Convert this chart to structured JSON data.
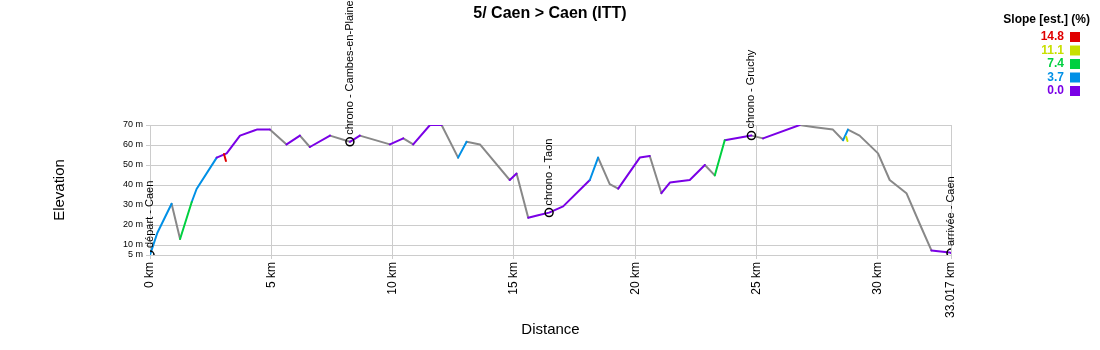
{
  "chart_data": {
    "type": "line",
    "title": "5/ Caen > Caen (ITT)",
    "xlabel": "Distance",
    "ylabel": "Elevation",
    "legend_title": "Slope [est.] (%)",
    "legend": "top right",
    "series": [
      {
        "name": "14.8",
        "color": "#e00000",
        "marker": "none",
        "line_style": "solid",
        "x": [
          3.05,
          3.13
        ],
        "values": [
          55.5,
          52
        ]
      },
      {
        "name": "11.1",
        "color": "#c8e000",
        "marker": "none",
        "line_style": "solid",
        "x": [
          28.7,
          28.75
        ],
        "values": [
          64,
          62
        ]
      },
      {
        "name": "7.4",
        "color": "#00d040",
        "marker": "none",
        "line_style": "solid",
        "x": [
          1.24,
          1.72
        ],
        "values": [
          13,
          31.5
        ]
      },
      {
        "name": "3.7",
        "color": "#0090e6",
        "marker": "none",
        "line_style": "solid",
        "x": [
          0,
          0.3,
          0.89
        ],
        "values": [
          5,
          16,
          30.6
        ]
      },
      {
        "name": "0.0",
        "color": "#7a00e6",
        "marker": "none",
        "line_style": "solid",
        "x": [
          2.75,
          3.16,
          3.71,
          4.4,
          4.94
        ],
        "values": [
          53.7,
          55.8,
          64.7,
          67.7,
          67.7
        ]
      },
      {
        "color": "#00d040",
        "marker": "none",
        "line_style": "solid",
        "x": [
          23.28,
          23.69
        ],
        "values": [
          44.8,
          62.4
        ]
      },
      {
        "color": "#0090e6",
        "marker": "none",
        "line_style": "solid",
        "x": [
          1.72,
          1.92,
          2.75
        ],
        "values": [
          31.5,
          38,
          53.7
        ]
      },
      {
        "color": "#0090e6",
        "marker": "none",
        "line_style": "solid",
        "x": [
          12.7,
          13.05
        ],
        "values": [
          53.7,
          61.6
        ]
      },
      {
        "color": "#0090e6",
        "marker": "none",
        "line_style": "solid",
        "x": [
          18.13,
          18.47
        ],
        "values": [
          42.5,
          53.7
        ]
      },
      {
        "color": "#0090e6",
        "marker": "none",
        "line_style": "solid",
        "x": [
          28.57,
          28.77
        ],
        "values": [
          62.4,
          67.7
        ]
      },
      {
        "color": "#7a00e6",
        "marker": "none",
        "line_style": "solid",
        "x": [
          5.63,
          6.18
        ],
        "values": [
          60.3,
          64.7
        ]
      },
      {
        "color": "#7a00e6",
        "marker": "none",
        "line_style": "solid",
        "x": [
          6.59,
          7.42
        ],
        "values": [
          59,
          64.7
        ]
      },
      {
        "color": "#7a00e6",
        "marker": "none",
        "line_style": "solid",
        "x": [
          8.24,
          8.65
        ],
        "values": [
          61.6,
          64.7
        ]
      },
      {
        "color": "#7a00e6",
        "marker": "none",
        "line_style": "solid",
        "x": [
          9.89,
          10.44
        ],
        "values": [
          60.3,
          63.3
        ]
      },
      {
        "color": "#7a00e6",
        "marker": "none",
        "line_style": "solid",
        "x": [
          10.85,
          11.54,
          12.02
        ],
        "values": [
          60.3,
          70,
          70
        ]
      },
      {
        "color": "#7a00e6",
        "marker": "none",
        "line_style": "solid",
        "x": [
          14.83,
          15.11
        ],
        "values": [
          42.5,
          45.7
        ]
      },
      {
        "color": "#7a00e6",
        "marker": "none",
        "line_style": "solid",
        "x": [
          15.59,
          16.0,
          16.45,
          17.03,
          18.13
        ],
        "values": [
          23.6,
          24.9,
          26.2,
          29.3,
          42.5
        ]
      },
      {
        "color": "#7a00e6",
        "marker": "none",
        "line_style": "solid",
        "x": [
          19.3,
          20.19,
          20.6
        ],
        "values": [
          38.2,
          53.7,
          54.5
        ]
      },
      {
        "color": "#7a00e6",
        "marker": "none",
        "line_style": "solid",
        "x": [
          21.08,
          21.43,
          22.25,
          22.87
        ],
        "values": [
          35.9,
          41.2,
          42.5,
          50
        ]
      },
      {
        "color": "#7a00e6",
        "marker": "none",
        "line_style": "solid",
        "x": [
          23.69,
          24.79
        ],
        "values": [
          62.4,
          64.7
        ]
      },
      {
        "color": "#7a00e6",
        "marker": "none",
        "line_style": "solid",
        "x": [
          25.27,
          26.78
        ],
        "values": [
          63.3,
          70
        ]
      },
      {
        "color": "#7a00e6",
        "marker": "none",
        "line_style": "solid",
        "x": [
          32.21,
          32.96,
          33.017
        ],
        "values": [
          7.3,
          6.3,
          6
        ]
      },
      {
        "color": "#888888",
        "marker": "none",
        "line_style": "solid",
        "x": [
          0.89,
          1.24
        ],
        "values": [
          30.6,
          13
        ]
      },
      {
        "color": "#888888",
        "marker": "none",
        "line_style": "solid",
        "x": [
          4.94,
          5.63
        ],
        "values": [
          67.7,
          60.3
        ]
      },
      {
        "color": "#888888",
        "marker": "none",
        "line_style": "solid",
        "x": [
          6.18,
          6.59
        ],
        "values": [
          64.7,
          59
        ]
      },
      {
        "color": "#888888",
        "marker": "none",
        "line_style": "solid",
        "x": [
          7.42,
          8.24
        ],
        "values": [
          64.7,
          61.6
        ]
      },
      {
        "color": "#888888",
        "marker": "none",
        "line_style": "solid",
        "x": [
          8.65,
          9.89
        ],
        "values": [
          64.7,
          60.3
        ]
      },
      {
        "color": "#888888",
        "marker": "none",
        "line_style": "solid",
        "x": [
          10.44,
          10.85
        ],
        "values": [
          63.3,
          60.3
        ]
      },
      {
        "color": "#888888",
        "marker": "none",
        "line_style": "solid",
        "x": [
          12.02,
          12.7
        ],
        "values": [
          70,
          53.7
        ]
      },
      {
        "color": "#888888",
        "marker": "none",
        "line_style": "solid",
        "x": [
          13.05,
          13.6,
          14.83
        ],
        "values": [
          61.6,
          60.3,
          42.5
        ]
      },
      {
        "color": "#888888",
        "marker": "none",
        "line_style": "solid",
        "x": [
          15.11,
          15.59
        ],
        "values": [
          45.7,
          23.6
        ]
      },
      {
        "color": "#888888",
        "marker": "none",
        "line_style": "solid",
        "x": [
          18.47,
          18.95,
          19.3
        ],
        "values": [
          53.7,
          40.4,
          38.2
        ]
      },
      {
        "color": "#888888",
        "marker": "none",
        "line_style": "solid",
        "x": [
          20.6,
          21.08
        ],
        "values": [
          54.5,
          35.9
        ]
      },
      {
        "color": "#888888",
        "marker": "none",
        "line_style": "solid",
        "x": [
          22.87,
          23.28
        ],
        "values": [
          50,
          44.8
        ]
      },
      {
        "color": "#888888",
        "marker": "none",
        "line_style": "solid",
        "x": [
          24.79,
          25.27
        ],
        "values": [
          64.7,
          63.3
        ]
      },
      {
        "color": "#888888",
        "marker": "none",
        "line_style": "solid",
        "x": [
          26.78,
          27.33,
          28.15,
          28.57
        ],
        "values": [
          70,
          69,
          67.7,
          62.4
        ]
      },
      {
        "color": "#888888",
        "marker": "none",
        "line_style": "solid",
        "x": [
          28.77,
          29.25,
          30.01,
          30.49,
          31.18,
          31.73,
          32.21
        ],
        "values": [
          67.7,
          64.7,
          55.8,
          42.5,
          35.9,
          20.5,
          7.3
        ]
      },
      {
        "type": "scatter",
        "marker": "circle",
        "color": "#000000",
        "x": [
          0,
          8.24,
          16.45,
          24.79,
          33.017
        ],
        "values": [
          5,
          61.6,
          26.2,
          64.7,
          6
        ]
      }
    ],
    "annotations": [
      {
        "text": "départ - Caen",
        "x": 0,
        "y": 5
      },
      {
        "text": "chrono - Cambes-en-Plaine",
        "x": 8.24,
        "y": 61.6
      },
      {
        "text": "chrono - Taon",
        "x": 16.45,
        "y": 26.2
      },
      {
        "text": "chrono - Gruchy",
        "x": 24.79,
        "y": 64.7
      },
      {
        "text": "arrivée - Caen",
        "x": 33.017,
        "y": 6
      }
    ],
    "xlim": [
      0,
      33.017
    ],
    "xticks": [
      {
        "value": 0,
        "label": "0 km"
      },
      {
        "value": 5,
        "label": "5 km"
      },
      {
        "value": 10,
        "label": "10 km"
      },
      {
        "value": 15,
        "label": "15 km"
      },
      {
        "value": 20,
        "label": "20 km"
      },
      {
        "value": 25,
        "label": "25 km"
      },
      {
        "value": 30,
        "label": "30 km"
      },
      {
        "value": 33.017,
        "label": "33.017 km"
      }
    ],
    "ylim": [
      5,
      70
    ],
    "yticks": [
      {
        "value": 5,
        "label": "5 m"
      },
      {
        "value": 10,
        "label": "10 m"
      },
      {
        "value": 20,
        "label": "20 m"
      },
      {
        "value": 30,
        "label": "30 m"
      },
      {
        "value": 40,
        "label": "40 m"
      },
      {
        "value": 50,
        "label": "50 m"
      },
      {
        "value": 60,
        "label": "60 m"
      },
      {
        "value": 70,
        "label": "70 m"
      }
    ],
    "grid": true
  }
}
